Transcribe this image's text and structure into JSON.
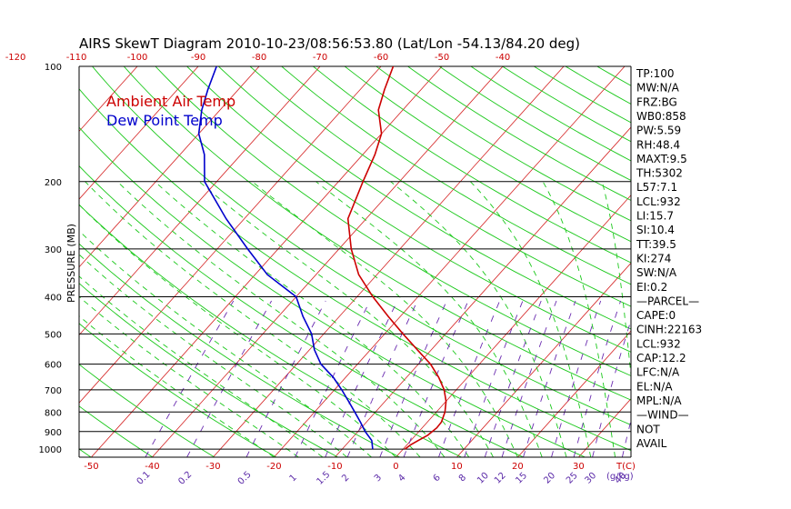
{
  "chart_data": {
    "type": "line",
    "title": "AIRS SkewT Diagram 2010-10-23/08:56:53.80 (Lat/Lon -54.13/84.20 deg)",
    "ylabel": "PRESSURE (MB)",
    "y_scale": "log",
    "ylim": [
      1000,
      100
    ],
    "y_ticks": [
      100,
      200,
      300,
      400,
      500,
      600,
      700,
      800,
      900,
      1000
    ],
    "top_ticks": [
      -120,
      -110,
      -100,
      -90,
      -80,
      -70,
      -60,
      -50,
      -40
    ],
    "bottom_ticks": [
      -50,
      -40,
      -30,
      -20,
      -10,
      0,
      10,
      20,
      30
    ],
    "bottom_unit_label": "T(C)",
    "mixing_ratio_ticks": [
      "0.1",
      "0.2",
      "0.5",
      "1",
      "1.5",
      "2",
      "3",
      "4",
      "6",
      "8",
      "10",
      "12",
      "15",
      "20",
      "25",
      "30",
      "40"
    ],
    "mixing_ratio_unit_label": "(g/kg)",
    "legend": [
      {
        "name": "Ambient Air Temp",
        "color": "#cc0000"
      },
      {
        "name": "Dew Point Temp",
        "color": "#0000cc"
      }
    ],
    "series": [
      {
        "name": "Ambient Air Temp",
        "color": "#cc0000",
        "points": [
          {
            "p": 1000,
            "t": 0.3
          },
          {
            "p": 975,
            "t": 0.6
          },
          {
            "p": 950,
            "t": 1.2
          },
          {
            "p": 920,
            "t": 2.0
          },
          {
            "p": 880,
            "t": 2.4
          },
          {
            "p": 850,
            "t": 2.3
          },
          {
            "p": 800,
            "t": 1.4
          },
          {
            "p": 750,
            "t": 0.0
          },
          {
            "p": 700,
            "t": -2.0
          },
          {
            "p": 650,
            "t": -4.7
          },
          {
            "p": 600,
            "t": -8.0
          },
          {
            "p": 550,
            "t": -12.3
          },
          {
            "p": 500,
            "t": -17.0
          },
          {
            "p": 450,
            "t": -22.0
          },
          {
            "p": 400,
            "t": -27.4
          },
          {
            "p": 350,
            "t": -33.0
          },
          {
            "p": 300,
            "t": -38.0
          },
          {
            "p": 250,
            "t": -43.0
          },
          {
            "p": 200,
            "t": -46.0
          },
          {
            "p": 170,
            "t": -48.0
          },
          {
            "p": 150,
            "t": -50.0
          },
          {
            "p": 130,
            "t": -54.0
          },
          {
            "p": 115,
            "t": -56.0
          },
          {
            "p": 100,
            "t": -58.0
          }
        ]
      },
      {
        "name": "Dew Point Temp",
        "color": "#0000cc",
        "points": [
          {
            "p": 1000,
            "t": -5.0
          },
          {
            "p": 975,
            "t": -5.7
          },
          {
            "p": 950,
            "t": -6.4
          },
          {
            "p": 900,
            "t": -8.8
          },
          {
            "p": 850,
            "t": -11.0
          },
          {
            "p": 800,
            "t": -13.4
          },
          {
            "p": 750,
            "t": -16.0
          },
          {
            "p": 700,
            "t": -18.8
          },
          {
            "p": 650,
            "t": -22.0
          },
          {
            "p": 600,
            "t": -26.0
          },
          {
            "p": 550,
            "t": -29.2
          },
          {
            "p": 500,
            "t": -32.0
          },
          {
            "p": 450,
            "t": -36.0
          },
          {
            "p": 400,
            "t": -40.0
          },
          {
            "p": 350,
            "t": -48.0
          },
          {
            "p": 300,
            "t": -55.0
          },
          {
            "p": 250,
            "t": -63.0
          },
          {
            "p": 200,
            "t": -72.0
          },
          {
            "p": 170,
            "t": -76.0
          },
          {
            "p": 150,
            "t": -80.0
          },
          {
            "p": 130,
            "t": -83.0
          },
          {
            "p": 115,
            "t": -85.0
          },
          {
            "p": 100,
            "t": -87.0
          }
        ]
      }
    ],
    "grid": true
  },
  "indices": [
    "TP:100",
    "MW:N/A",
    "FRZ:BG",
    "WB0:858",
    "PW:5.59",
    "RH:48.4",
    "MAXT:9.5",
    "TH:5302",
    "L57:7.1",
    "LCL:932",
    "LI:15.7",
    "SI:10.4",
    "TT:39.5",
    "KI:274",
    "SW:N/A",
    "EI:0.2",
    "—PARCEL—",
    "CAPE:0",
    "CINH:22163",
    "LCL:932",
    "CAP:12.2",
    "LFC:N/A",
    "EL:N/A",
    "MPL:N/A",
    "—WIND—",
    "NOT",
    "AVAIL"
  ]
}
